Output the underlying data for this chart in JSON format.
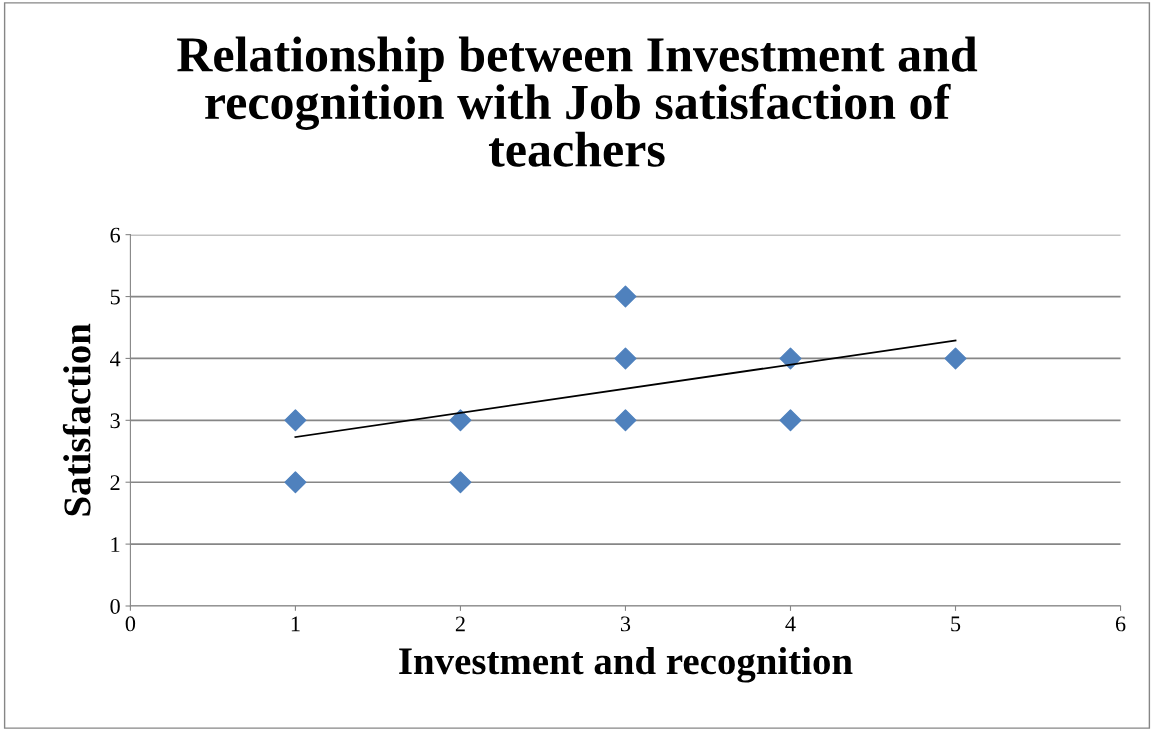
{
  "chart_data": {
    "type": "scatter",
    "title": "Relationship between Investment and recognition with Job satisfaction of teachers",
    "xlabel": "Investment and recognition",
    "ylabel": "Satisfaction",
    "series": [
      {
        "type": "scatter",
        "color": "#4f81bd",
        "marker": "diamond",
        "x": [
          1,
          1,
          2,
          2,
          3,
          3,
          3,
          4,
          4,
          5
        ],
        "values": [
          3,
          2,
          3,
          2,
          5,
          4,
          3,
          4,
          3,
          4
        ]
      },
      {
        "type": "line",
        "color": "#000000",
        "marker": "none",
        "line_style": "solid",
        "x": [
          1,
          5
        ],
        "values": [
          2.73,
          4.29
        ]
      }
    ],
    "xlim": [
      0,
      6
    ],
    "xticks": [
      0,
      1,
      2,
      3,
      4,
      5,
      6
    ],
    "ylim": [
      0,
      6
    ],
    "yticks": [
      0,
      1,
      2,
      3,
      4,
      5,
      6
    ],
    "grid": "y"
  }
}
